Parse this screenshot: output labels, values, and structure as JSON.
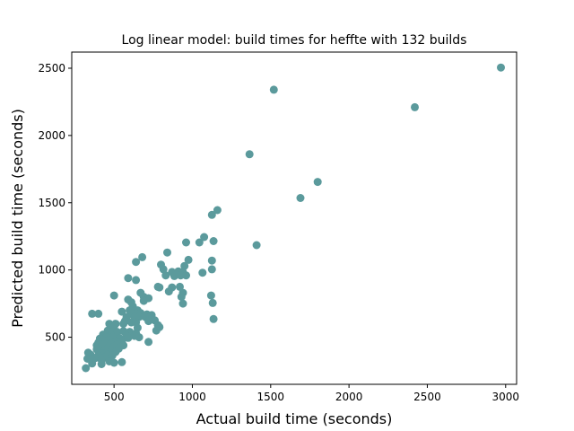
{
  "chart_data": {
    "type": "scatter",
    "title": "Log linear model: build times for heffte with 132 builds",
    "xlabel": "Actual build time (seconds)",
    "ylabel": "Predicted build time (seconds)",
    "xlim": [
      230,
      3070
    ],
    "ylim": [
      150,
      2620
    ],
    "xticks": [
      500,
      1000,
      1500,
      2000,
      2500,
      3000
    ],
    "yticks": [
      500,
      1000,
      1500,
      2000,
      2500
    ],
    "grid": false,
    "marker_color": "#5b9a9c",
    "points": [
      [
        2970,
        2505
      ],
      [
        2420,
        2210
      ],
      [
        1520,
        2340
      ],
      [
        1365,
        1860
      ],
      [
        1800,
        1655
      ],
      [
        1690,
        1535
      ],
      [
        1410,
        1185
      ],
      [
        1160,
        1445
      ],
      [
        1125,
        1410
      ],
      [
        1075,
        1245
      ],
      [
        1135,
        1215
      ],
      [
        1045,
        1205
      ],
      [
        960,
        1205
      ],
      [
        975,
        1075
      ],
      [
        1125,
        1070
      ],
      [
        1125,
        1005
      ],
      [
        1065,
        980
      ],
      [
        950,
        1030
      ],
      [
        840,
        1130
      ],
      [
        680,
        1095
      ],
      [
        640,
        1060
      ],
      [
        800,
        1040
      ],
      [
        815,
        1005
      ],
      [
        870,
        985
      ],
      [
        910,
        990
      ],
      [
        940,
        985
      ],
      [
        885,
        955
      ],
      [
        925,
        960
      ],
      [
        960,
        960
      ],
      [
        830,
        960
      ],
      [
        590,
        940
      ],
      [
        640,
        925
      ],
      [
        920,
        875
      ],
      [
        870,
        870
      ],
      [
        790,
        870
      ],
      [
        780,
        875
      ],
      [
        850,
        840
      ],
      [
        940,
        830
      ],
      [
        1120,
        810
      ],
      [
        930,
        800
      ],
      [
        500,
        810
      ],
      [
        670,
        830
      ],
      [
        690,
        800
      ],
      [
        720,
        790
      ],
      [
        690,
        770
      ],
      [
        590,
        780
      ],
      [
        610,
        760
      ],
      [
        1130,
        755
      ],
      [
        940,
        750
      ],
      [
        620,
        730
      ],
      [
        650,
        700
      ],
      [
        600,
        700
      ],
      [
        550,
        690
      ],
      [
        610,
        680
      ],
      [
        670,
        680
      ],
      [
        710,
        670
      ],
      [
        740,
        665
      ],
      [
        360,
        675
      ],
      [
        400,
        675
      ],
      [
        580,
        650
      ],
      [
        630,
        650
      ],
      [
        660,
        650
      ],
      [
        700,
        650
      ],
      [
        740,
        640
      ],
      [
        760,
        625
      ],
      [
        1135,
        635
      ],
      [
        570,
        620
      ],
      [
        610,
        610
      ],
      [
        640,
        610
      ],
      [
        720,
        620
      ],
      [
        470,
        600
      ],
      [
        510,
        600
      ],
      [
        560,
        600
      ],
      [
        780,
        590
      ],
      [
        500,
        580
      ],
      [
        650,
        570
      ],
      [
        790,
        575
      ],
      [
        770,
        550
      ],
      [
        460,
        550
      ],
      [
        490,
        540
      ],
      [
        520,
        540
      ],
      [
        560,
        545
      ],
      [
        600,
        540
      ],
      [
        640,
        530
      ],
      [
        430,
        520
      ],
      [
        480,
        515
      ],
      [
        520,
        510
      ],
      [
        580,
        510
      ],
      [
        630,
        510
      ],
      [
        660,
        500
      ],
      [
        450,
        500
      ],
      [
        490,
        500
      ],
      [
        540,
        490
      ],
      [
        590,
        495
      ],
      [
        720,
        465
      ],
      [
        410,
        490
      ],
      [
        430,
        475
      ],
      [
        470,
        480
      ],
      [
        510,
        470
      ],
      [
        550,
        470
      ],
      [
        400,
        460
      ],
      [
        440,
        455
      ],
      [
        480,
        450
      ],
      [
        520,
        445
      ],
      [
        560,
        440
      ],
      [
        390,
        440
      ],
      [
        420,
        430
      ],
      [
        460,
        420
      ],
      [
        500,
        430
      ],
      [
        530,
        415
      ],
      [
        390,
        410
      ],
      [
        410,
        395
      ],
      [
        440,
        400
      ],
      [
        480,
        395
      ],
      [
        510,
        390
      ],
      [
        430,
        380
      ],
      [
        460,
        370
      ],
      [
        490,
        365
      ],
      [
        335,
        385
      ],
      [
        350,
        370
      ],
      [
        400,
        365
      ],
      [
        440,
        350
      ],
      [
        380,
        345
      ],
      [
        330,
        340
      ],
      [
        360,
        335
      ],
      [
        420,
        330
      ],
      [
        470,
        320
      ],
      [
        500,
        310
      ],
      [
        550,
        315
      ],
      [
        360,
        305
      ],
      [
        420,
        300
      ],
      [
        320,
        270
      ]
    ]
  }
}
